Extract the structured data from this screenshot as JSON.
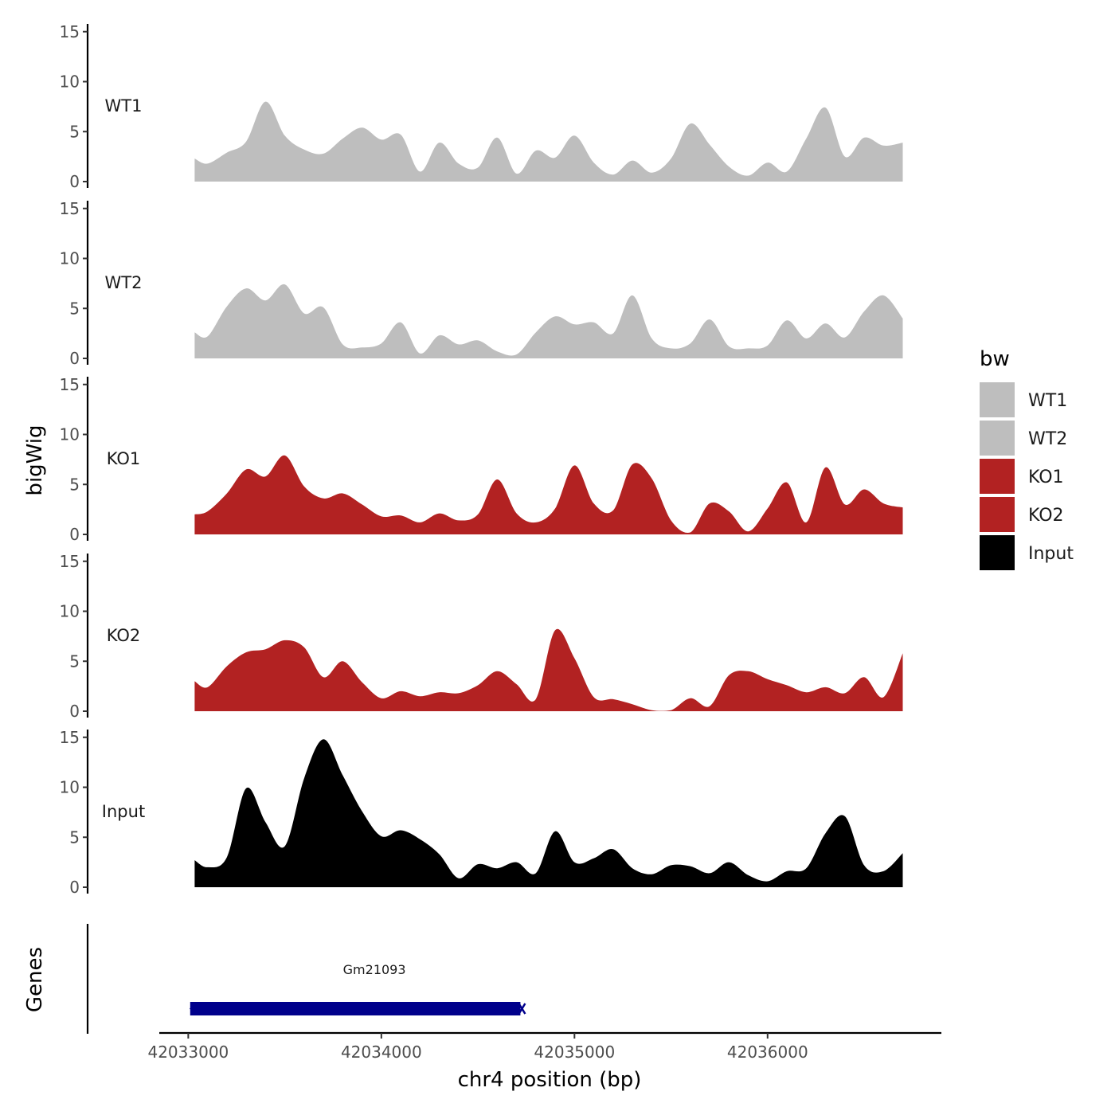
{
  "chart_data": {
    "type": "area",
    "title": "",
    "xlabel": "chr4 position (bp)",
    "ylabel": "bigWig",
    "genes_label": "Genes",
    "xlim": [
      42032850,
      42036900
    ],
    "ylim": [
      0,
      15
    ],
    "x_ticks": [
      42033000,
      42034000,
      42035000,
      42036000
    ],
    "x_tick_labels": [
      "42033000",
      "42034000",
      "42035000",
      "42036000"
    ],
    "y_ticks": [
      0,
      5,
      10,
      15
    ],
    "y_tick_labels": [
      "0",
      "5",
      "10",
      "15"
    ],
    "legend": {
      "title": "bw",
      "position": "right",
      "entries": [
        {
          "label": "WT1",
          "color": "#bebebe"
        },
        {
          "label": "WT2",
          "color": "#bebebe"
        },
        {
          "label": "KO1",
          "color": "#b22222"
        },
        {
          "label": "KO2",
          "color": "#b22222"
        },
        {
          "label": "Input",
          "color": "#000000"
        }
      ]
    },
    "x_positions": [
      42033033,
      42033100,
      42033200,
      42033300,
      42033400,
      42033500,
      42033600,
      42033700,
      42033800,
      42033900,
      42034000,
      42034100,
      42034200,
      42034300,
      42034400,
      42034500,
      42034600,
      42034700,
      42034800,
      42034900,
      42035000,
      42035100,
      42035200,
      42035300,
      42035400,
      42035500,
      42035600,
      42035700,
      42035800,
      42035900,
      42036000,
      42036100,
      42036200,
      42036300,
      42036400,
      42036500,
      42036600,
      42036700
    ],
    "series": [
      {
        "name": "WT1",
        "color": "#bebebe",
        "values": [
          2.3,
          1.8,
          2.9,
          4.0,
          8.0,
          4.6,
          3.2,
          2.8,
          4.3,
          5.4,
          4.2,
          4.7,
          1.0,
          3.9,
          1.8,
          1.4,
          4.4,
          0.8,
          3.1,
          2.4,
          4.6,
          1.9,
          0.7,
          2.1,
          0.9,
          2.3,
          5.8,
          3.7,
          1.5,
          0.6,
          1.9,
          1.0,
          4.3,
          7.4,
          2.5,
          4.4,
          3.6,
          3.9
        ]
      },
      {
        "name": "WT2",
        "color": "#bebebe",
        "values": [
          2.6,
          2.2,
          5.2,
          7.0,
          5.8,
          7.4,
          4.5,
          5.1,
          1.4,
          1.1,
          1.5,
          3.6,
          0.5,
          2.3,
          1.4,
          1.8,
          0.7,
          0.4,
          2.6,
          4.2,
          3.4,
          3.6,
          2.5,
          6.3,
          2.0,
          1.0,
          1.5,
          3.9,
          1.2,
          1.0,
          1.3,
          3.8,
          2.0,
          3.5,
          2.1,
          4.7,
          6.3,
          4.0
        ]
      },
      {
        "name": "KO1",
        "color": "#b22222",
        "values": [
          2.0,
          2.3,
          4.1,
          6.5,
          5.8,
          7.9,
          4.8,
          3.6,
          4.1,
          3.0,
          1.8,
          1.9,
          1.2,
          2.1,
          1.4,
          2.0,
          5.5,
          2.1,
          1.2,
          2.6,
          6.9,
          3.1,
          2.4,
          7.0,
          5.6,
          1.4,
          0.2,
          3.1,
          2.3,
          0.3,
          2.6,
          5.2,
          1.2,
          6.7,
          3.0,
          4.5,
          3.1,
          2.7
        ]
      },
      {
        "name": "KO2",
        "color": "#b22222",
        "values": [
          3.0,
          2.4,
          4.5,
          5.9,
          6.2,
          7.1,
          6.4,
          3.4,
          5.0,
          2.9,
          1.3,
          2.0,
          1.5,
          1.9,
          1.8,
          2.6,
          4.0,
          2.7,
          1.2,
          8.1,
          5.3,
          1.4,
          1.2,
          0.7,
          0.1,
          0.1,
          1.3,
          0.5,
          3.6,
          4.0,
          3.2,
          2.6,
          1.9,
          2.4,
          1.8,
          3.4,
          1.4,
          5.8
        ]
      },
      {
        "name": "Input",
        "color": "#000000",
        "values": [
          2.7,
          2.0,
          3.0,
          9.9,
          6.5,
          4.1,
          10.9,
          14.8,
          11.2,
          7.6,
          5.1,
          5.7,
          4.8,
          3.3,
          0.9,
          2.3,
          1.9,
          2.5,
          1.4,
          5.6,
          2.5,
          2.9,
          3.8,
          1.9,
          1.3,
          2.2,
          2.1,
          1.4,
          2.5,
          1.2,
          0.6,
          1.6,
          1.9,
          5.4,
          7.1,
          2.2,
          1.6,
          3.4
        ]
      }
    ],
    "genes": [
      {
        "name": "Gm21093",
        "start": 42033010,
        "end": 42034720,
        "color": "#00008b",
        "strand": "-"
      }
    ]
  }
}
